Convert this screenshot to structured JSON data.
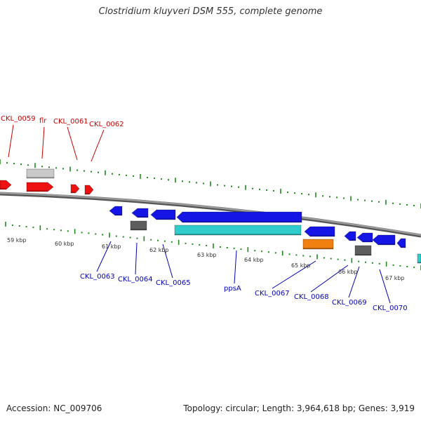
{
  "title": "Clostridium kluyveri DSM 555, complete genome",
  "footer": {
    "accession": "Accession: NC_009706",
    "summary": "Topology: circular; Length: 3,964,618 bp; Genes: 3,919"
  },
  "colors": {
    "backbone": "#7f7f7f",
    "tick": "#1e8a1e",
    "top_label": "#cc0000",
    "bottom_label": "#0000bb",
    "kbp_label": "#333333",
    "red_gene": "#ee1111",
    "blue_gene": "#1515e6",
    "gray_gene": "#c9c9c9",
    "dark_gray_gene": "#5e5e5e",
    "cyan_gene": "#30cccc",
    "orange_gene": "#f08010"
  },
  "kbp_labels": [
    "59 kbp",
    "60 kbp",
    "61 kbp",
    "62 kbp",
    "63 kbp",
    "64 kbp",
    "65 kbp",
    "66 kbp",
    "67 kbp"
  ],
  "top_gene_labels": [
    "CKL_0059",
    "flr",
    "CKL_0061",
    "CKL_0062"
  ],
  "bottom_gene_labels": [
    "CKL_0063",
    "CKL_0064",
    "CKL_0065",
    "ppsA",
    "CKL_0067",
    "CKL_0068",
    "CKL_0069",
    "CKL_0070"
  ]
}
